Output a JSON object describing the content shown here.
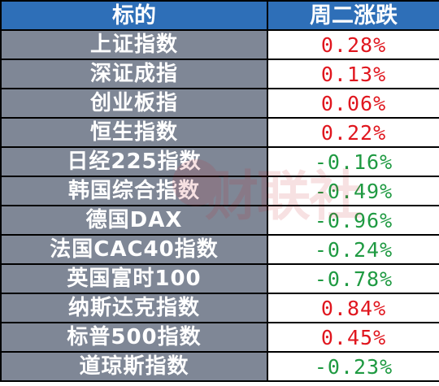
{
  "table": {
    "header": {
      "name": "标的",
      "change": "周二涨跌"
    },
    "rows": [
      {
        "name": "上证指数",
        "change": "0.28%",
        "direction": "up"
      },
      {
        "name": "深证成指",
        "change": "0.13%",
        "direction": "up"
      },
      {
        "name": "创业板指",
        "change": "0.06%",
        "direction": "up"
      },
      {
        "name": "恒生指数",
        "change": "0.22%",
        "direction": "up"
      },
      {
        "name": "日经225指数",
        "change": "-0.16%",
        "direction": "down"
      },
      {
        "name": "韩国综合指数",
        "change": "-0.49%",
        "direction": "down"
      },
      {
        "name": "德国DAX",
        "change": "-0.96%",
        "direction": "down"
      },
      {
        "name": "法国CAC40指数",
        "change": "-0.24%",
        "direction": "down"
      },
      {
        "name": "英国富时100",
        "change": "-0.78%",
        "direction": "down"
      },
      {
        "name": "纳斯达克指数",
        "change": "0.84%",
        "direction": "up"
      },
      {
        "name": "标普500指数",
        "change": "0.45%",
        "direction": "up"
      },
      {
        "name": "道琼斯指数",
        "change": "-0.23%",
        "direction": "down"
      }
    ]
  },
  "watermark": {
    "text": "财联社"
  },
  "colors": {
    "header_bg": "#2e6fb8",
    "name_bg": "#7f8796",
    "up": "#e0161e",
    "down": "#1f9a42"
  }
}
